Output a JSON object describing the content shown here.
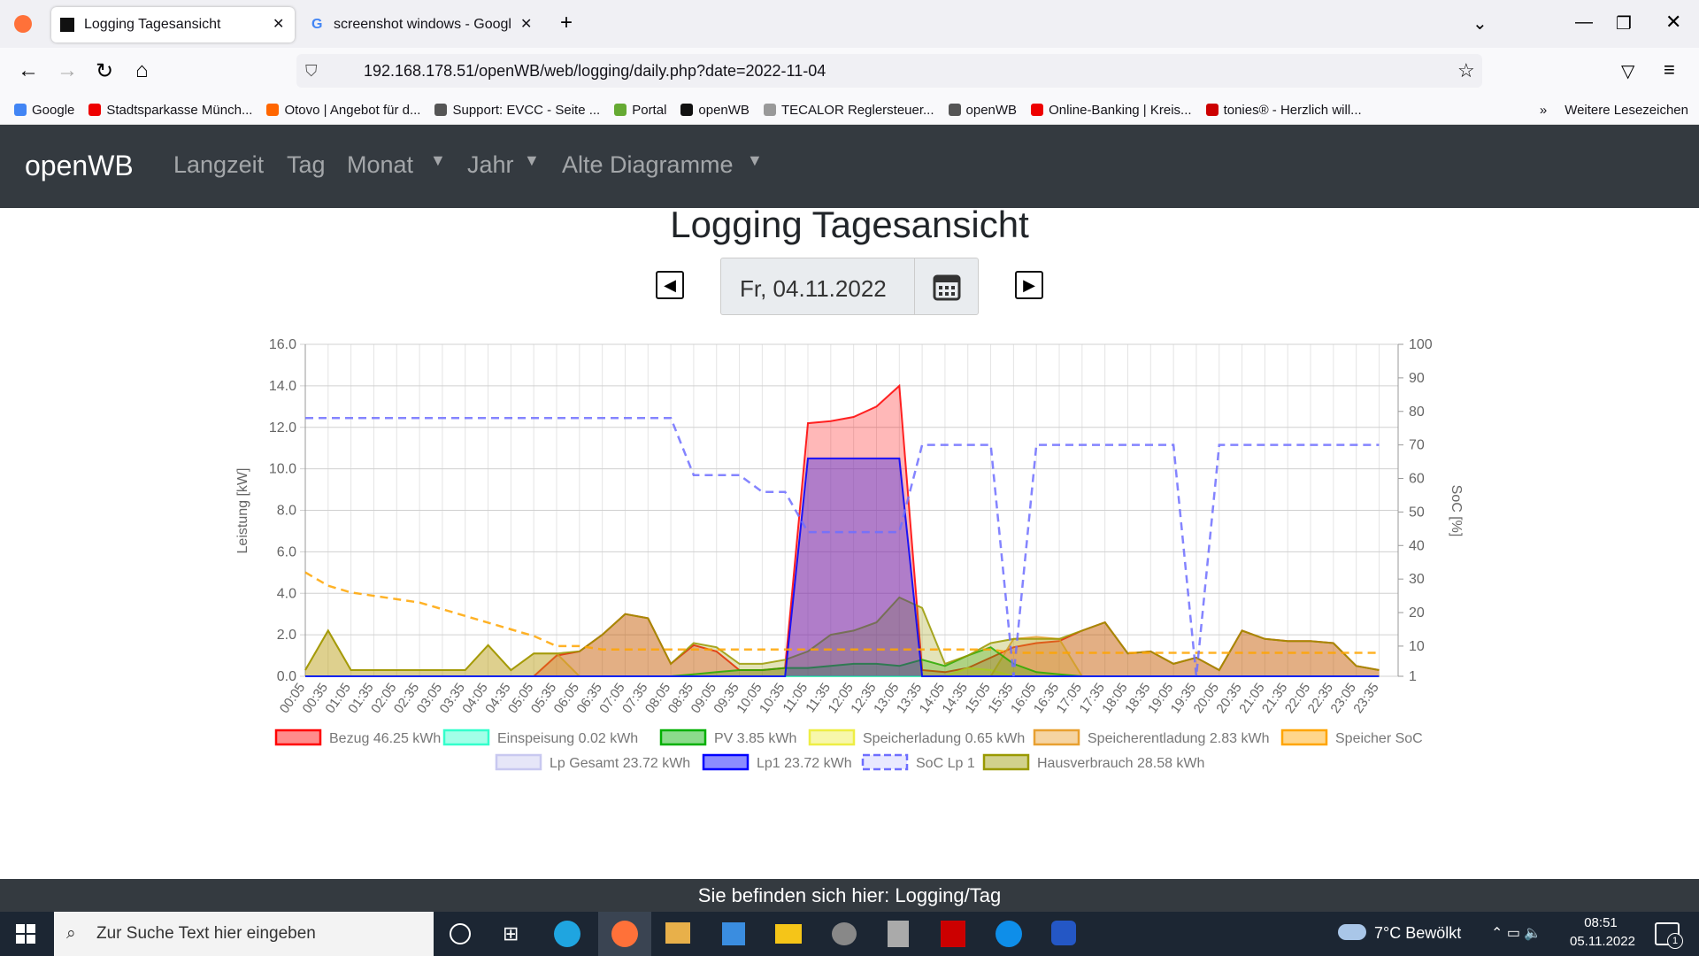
{
  "browser": {
    "tabs": [
      "Logging Tagesansicht",
      "screenshot windows - Google S"
    ],
    "url": "192.168.178.51/openWB/web/logging/daily.php?date=2022-11-04",
    "bookmarks": [
      "Google",
      "Stadtsparkasse Münch...",
      "Otovo | Angebot für d...",
      "Support: EVCC - Seite ...",
      "Portal",
      "openWB",
      "TECALOR Reglersteuer...",
      "openWB",
      "Online-Banking | Kreis...",
      "tonies® - Herzlich will..."
    ],
    "more_bookmarks": "Weitere Lesezeichen"
  },
  "nav": {
    "brand": "openWB",
    "items": [
      "Langzeit",
      "Tag",
      "Monat",
      "Jahr",
      "Alte Diagramme"
    ]
  },
  "page": {
    "title": "Logging Tagesansicht",
    "date": "Fr, 04.11.2022"
  },
  "chart_data": {
    "type": "line",
    "y_label": "Leistung [kW]",
    "y2_label": "SoC [%]",
    "categories": [
      "00:05",
      "00:35",
      "01:05",
      "01:35",
      "02:05",
      "02:35",
      "03:05",
      "03:35",
      "04:05",
      "04:35",
      "05:05",
      "05:35",
      "06:05",
      "06:35",
      "07:05",
      "07:35",
      "08:05",
      "08:35",
      "09:05",
      "09:35",
      "10:05",
      "10:35",
      "11:05",
      "11:35",
      "12:05",
      "12:35",
      "13:05",
      "13:35",
      "14:05",
      "14:35",
      "15:05",
      "15:35",
      "16:05",
      "16:35",
      "17:05",
      "17:35",
      "18:05",
      "18:35",
      "19:05",
      "19:35",
      "20:05",
      "20:35",
      "21:05",
      "21:35",
      "22:05",
      "22:35",
      "23:05",
      "23:35"
    ],
    "ylim": [
      0,
      16
    ],
    "yticks": [
      {
        "value": 0,
        "label": "0.0"
      },
      {
        "value": 2,
        "label": "2.0"
      },
      {
        "value": 4,
        "label": "4.0"
      },
      {
        "value": 6,
        "label": "6.0"
      },
      {
        "value": 8,
        "label": "8.0"
      },
      {
        "value": 10,
        "label": "10.0"
      },
      {
        "value": 12,
        "label": "12.0"
      },
      {
        "value": 14,
        "label": "14.0"
      },
      {
        "value": 16,
        "label": "16.0"
      }
    ],
    "y2lim": [
      1,
      100
    ],
    "y2ticks": [
      1,
      10,
      20,
      30,
      40,
      50,
      60,
      70,
      80,
      90,
      100
    ],
    "grid": true,
    "series": [
      {
        "name": "Bezug 46.25 kWh",
        "color": "#ff0000",
        "values": [
          0,
          0,
          0,
          0,
          0,
          0,
          0,
          0,
          0,
          0,
          0,
          1.0,
          1.2,
          2.0,
          3.0,
          2.8,
          0.6,
          1.5,
          1.2,
          0.3,
          0.3,
          0.4,
          12.2,
          12.3,
          12.5,
          13.0,
          14.0,
          0.3,
          0.2,
          0.4,
          0.9,
          1.4,
          1.6,
          1.7,
          2.2,
          2.6,
          1.1,
          1.2,
          0.6,
          0.9,
          0.3,
          2.2,
          1.8,
          1.7,
          1.7,
          1.6,
          0.5,
          0.3
        ]
      },
      {
        "name": "Einspeisung 0.02 kWh",
        "color": "#33ffcc",
        "values": [
          0,
          0,
          0,
          0,
          0,
          0,
          0,
          0,
          0,
          0,
          0,
          0,
          0,
          0,
          0,
          0,
          0,
          0,
          0,
          0,
          0,
          0,
          0,
          0,
          0,
          0,
          0,
          0,
          0,
          0,
          0,
          0,
          0,
          0,
          0,
          0,
          0,
          0,
          0,
          0,
          0,
          0,
          0,
          0,
          0,
          0,
          0,
          0
        ]
      },
      {
        "name": "PV 3.85 kWh",
        "color": "#00b000",
        "values": [
          0,
          0,
          0,
          0,
          0,
          0,
          0,
          0,
          0,
          0,
          0,
          0,
          0,
          0,
          0,
          0,
          0,
          0.1,
          0.2,
          0.3,
          0.3,
          0.4,
          0.4,
          0.5,
          0.6,
          0.6,
          0.5,
          0.8,
          0.5,
          1.0,
          1.4,
          0.6,
          0.2,
          0.1,
          0,
          0,
          0,
          0,
          0,
          0,
          0,
          0,
          0,
          0,
          0,
          0,
          0,
          0
        ]
      },
      {
        "name": "Speicherladung 0.65 kWh",
        "color": "#eeee44",
        "values": [
          0,
          0,
          0,
          0,
          0,
          0,
          0,
          0,
          0,
          0,
          0,
          0,
          0,
          0,
          0,
          0,
          0,
          0,
          0,
          0,
          0,
          0,
          0,
          0,
          0,
          0,
          0,
          0,
          0,
          0.4,
          0.3,
          0,
          0,
          0,
          0,
          0,
          0,
          0,
          0,
          0,
          0,
          0,
          0,
          0,
          0,
          0,
          0,
          0
        ]
      },
      {
        "name": "Speicherentladung 2.83 kWh",
        "color": "#e8a030",
        "values": [
          0.3,
          2.2,
          0.3,
          0.3,
          0.3,
          0.3,
          0.3,
          0.3,
          1.5,
          0.3,
          1.1,
          1.1,
          0,
          0,
          0,
          0,
          0,
          0,
          0,
          0,
          0,
          0,
          0,
          0,
          0,
          0,
          0,
          0,
          0,
          0,
          0,
          1.8,
          1.9,
          1.8,
          0,
          0,
          0,
          0,
          0,
          0,
          0,
          0,
          0,
          0,
          0,
          0,
          0,
          0
        ]
      },
      {
        "name": "Speicher SoC",
        "color": "#ffa500",
        "axis": "y2",
        "dashed": true,
        "values": [
          32,
          28,
          26,
          25,
          24,
          23,
          21,
          19,
          17,
          15,
          13,
          10,
          10,
          9,
          9,
          9,
          9,
          9,
          9,
          9,
          9,
          9,
          9,
          9,
          9,
          9,
          9,
          9,
          9,
          9,
          9,
          8,
          8,
          8,
          8,
          8,
          8,
          8,
          8,
          8,
          8,
          8,
          8,
          8,
          8,
          8,
          8,
          8
        ]
      },
      {
        "name": "Lp Gesamt 23.72 kWh",
        "color": "#c8c8f0",
        "values": [
          0,
          0,
          0,
          0,
          0,
          0,
          0,
          0,
          0,
          0,
          0,
          0,
          0,
          0,
          0,
          0,
          0,
          0,
          0,
          0,
          0,
          0,
          10.5,
          10.5,
          10.5,
          10.5,
          10.5,
          0,
          0,
          0,
          0,
          0,
          0,
          0,
          0,
          0,
          0,
          0,
          0,
          0,
          0,
          0,
          0,
          0,
          0,
          0,
          0,
          0
        ]
      },
      {
        "name": "Lp1 23.72 kWh",
        "color": "#0000ff",
        "values": [
          0,
          0,
          0,
          0,
          0,
          0,
          0,
          0,
          0,
          0,
          0,
          0,
          0,
          0,
          0,
          0,
          0,
          0,
          0,
          0,
          0,
          0,
          10.5,
          10.5,
          10.5,
          10.5,
          10.5,
          0,
          0,
          0,
          0,
          0,
          0,
          0,
          0,
          0,
          0,
          0,
          0,
          0,
          0,
          0,
          0,
          0,
          0,
          0,
          0,
          0
        ]
      },
      {
        "name": "SoC Lp 1",
        "color": "#6e6eff",
        "axis": "y2",
        "dashed": true,
        "values": [
          78,
          78,
          78,
          78,
          78,
          78,
          78,
          78,
          78,
          78,
          78,
          78,
          78,
          78,
          78,
          78,
          78,
          61,
          61,
          61,
          56,
          56,
          44,
          44,
          44,
          44,
          44,
          70,
          70,
          70,
          70,
          1,
          70,
          70,
          70,
          70,
          70,
          70,
          70,
          1,
          70,
          70,
          70,
          70,
          70,
          70,
          70,
          70
        ]
      },
      {
        "name": "Hausverbrauch 28.58 kWh",
        "color": "#999900",
        "values": [
          0.3,
          2.2,
          0.3,
          0.3,
          0.3,
          0.3,
          0.3,
          0.3,
          1.5,
          0.3,
          1.1,
          1.1,
          1.2,
          2.0,
          3.0,
          2.8,
          0.6,
          1.6,
          1.4,
          0.6,
          0.6,
          0.8,
          1.2,
          2.0,
          2.2,
          2.6,
          3.8,
          3.3,
          0.6,
          1.0,
          1.6,
          1.8,
          1.8,
          1.8,
          2.2,
          2.6,
          1.1,
          1.2,
          0.6,
          0.9,
          0.3,
          2.2,
          1.8,
          1.7,
          1.7,
          1.6,
          0.5,
          0.3
        ]
      }
    ]
  },
  "footer": "Sie befinden sich hier: Logging/Tag",
  "taskbar": {
    "search": "Zur Suche Text hier eingeben",
    "weather": "7°C  Bewölkt",
    "time": "08:51",
    "date": "05.11.2022",
    "notifications": "1"
  }
}
